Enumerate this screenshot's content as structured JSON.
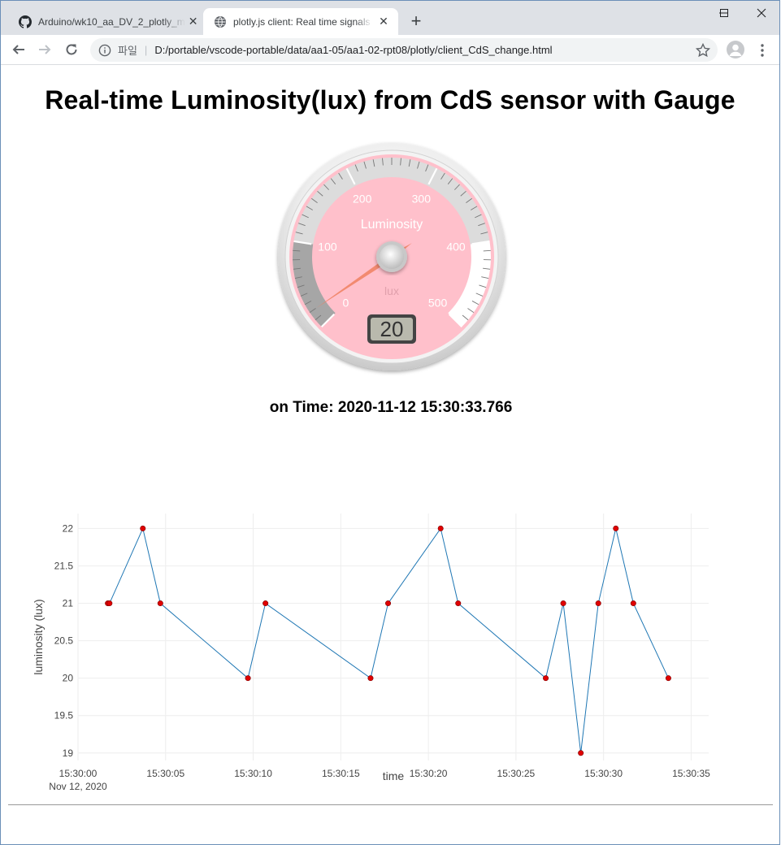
{
  "browser": {
    "tabs": [
      {
        "title": "Arduino/wk10_aa_DV_2_plotly_m",
        "icon": "github-icon",
        "active": false
      },
      {
        "title": "plotly.js client: Real time signals",
        "icon": "globe-icon",
        "active": true
      }
    ],
    "new_tab_label": "+",
    "address": {
      "scheme_label": "파일",
      "separator": "|",
      "url": "D:/portable/vscode-portable/data/aa1-05/aa1-02-rpt08/plotly/client_CdS_change.html"
    },
    "window_controls": {
      "minimize": "—",
      "maximize": "☐",
      "close": "✕"
    }
  },
  "page": {
    "title": "Real-time Luminosity(lux) from CdS sensor with Gauge",
    "on_time": "on Time: 2020-11-12 15:30:33.766"
  },
  "gauge": {
    "label": "Luminosity",
    "units": "lux",
    "value": 20,
    "value_display": "20",
    "min": 0,
    "max": 500,
    "tick_labels": [
      "0",
      "100",
      "200",
      "300",
      "400",
      "500"
    ],
    "plate_color": "#ffc0cb",
    "highlights": [
      {
        "from": 0,
        "to": 100,
        "color": "#a6a6a6"
      },
      {
        "from": 100,
        "to": 400,
        "color": "#dcdcdc"
      },
      {
        "from": 400,
        "to": 500,
        "color": "#ffffff"
      }
    ],
    "needle_color": "#f08060"
  },
  "chart_data": {
    "type": "line",
    "xlabel": "time",
    "ylabel": "luminosity (lux)",
    "x_tick_labels": [
      "15:30:00",
      "15:30:05",
      "15:30:10",
      "15:30:15",
      "15:30:20",
      "15:30:25",
      "15:30:30",
      "15:30:35"
    ],
    "x_tick_seconds": [
      0,
      5,
      10,
      15,
      20,
      25,
      30,
      35
    ],
    "x_date_label": "Nov 12, 2020",
    "y_tick_labels": [
      "19",
      "19.5",
      "20",
      "20.5",
      "21",
      "21.5",
      "22"
    ],
    "xlim": [
      "15:30:00",
      "15:30:36"
    ],
    "ylim": [
      18.9,
      22.2
    ],
    "grid": true,
    "line_color": "#1f77b4",
    "marker_color": "#e00000",
    "series": [
      {
        "x": [
          "15:30:01.7",
          "15:30:01.8",
          "15:30:03.7",
          "15:30:04.7",
          "15:30:09.7",
          "15:30:10.7",
          "15:30:16.7",
          "15:30:17.7",
          "15:30:20.7",
          "15:30:21.7",
          "15:30:26.7",
          "15:30:27.7",
          "15:30:28.7",
          "15:30:29.7",
          "15:30:30.7",
          "15:30:31.7",
          "15:30:33.7"
        ],
        "y": [
          21,
          21,
          22,
          21,
          20,
          21,
          20,
          21,
          22,
          21,
          20,
          21,
          19,
          21,
          22,
          21,
          20
        ]
      }
    ]
  }
}
